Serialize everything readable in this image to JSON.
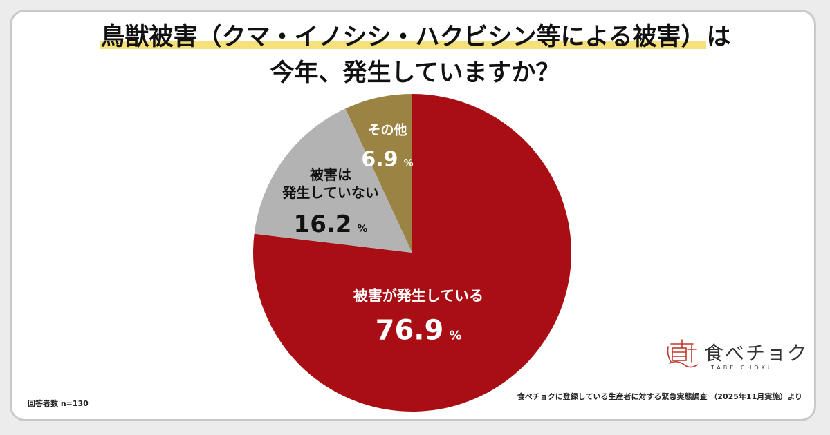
{
  "title": {
    "line1_highlighted": "鳥獣被害（クマ・イノシシ・ハクビシン等による被害）",
    "line1_suffix": "は",
    "line2": "今年、発生していますか？"
  },
  "chart_data": {
    "type": "pie",
    "start_angle_deg": 0,
    "direction": "clockwise",
    "slices": [
      {
        "label_lines": [
          "被害が発生している"
        ],
        "value": 76.9,
        "unit": "%",
        "color": "#a80e14",
        "text_color": "#ffffff"
      },
      {
        "label_lines": [
          "被害は",
          "発生していない"
        ],
        "value": 16.2,
        "unit": "%",
        "color": "#b3b3b3",
        "text_color": "#111111"
      },
      {
        "label_lines": [
          "その他"
        ],
        "value": 6.9,
        "unit": "%",
        "color": "#9b8344",
        "text_color": "#ffffff"
      }
    ]
  },
  "logo": {
    "text": "食べチョク",
    "sub": "TABE CHOKU",
    "icon": "taberu-kanji-logo-icon",
    "color": "#c0392b"
  },
  "footnote_left": "回答者数 n=130",
  "footnote_right": "食べチョクに登録している生産者に対する緊急実態調査 （2025年11月実施）より"
}
